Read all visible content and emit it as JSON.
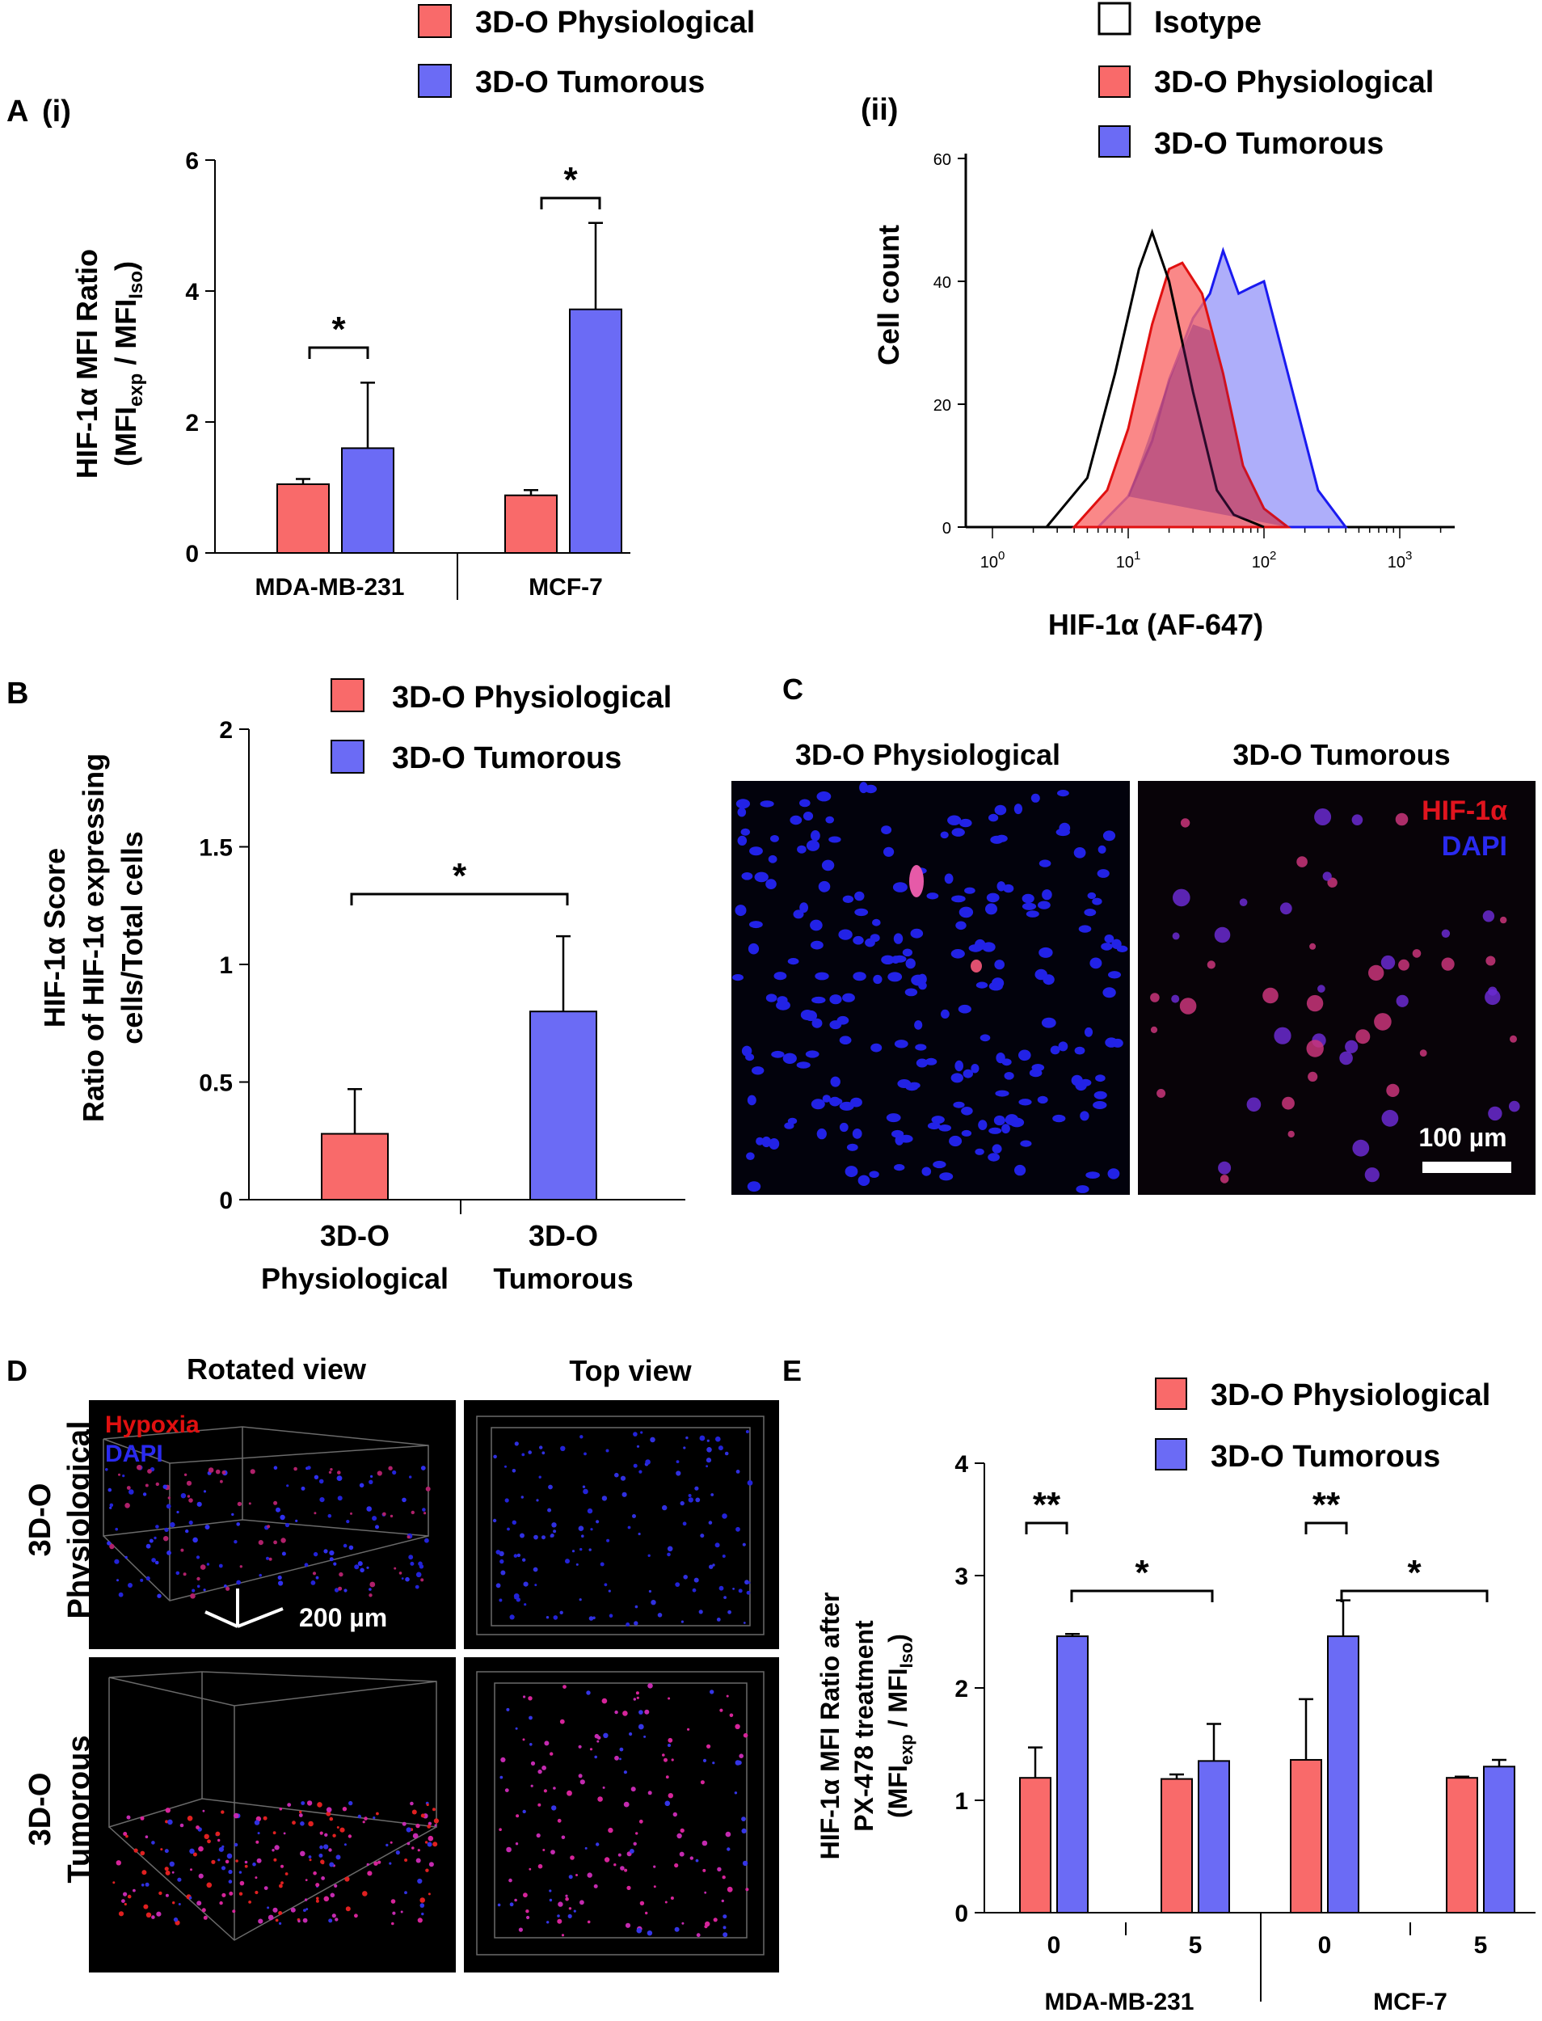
{
  "colors": {
    "physiological": "#f96a6a",
    "tumorous": "#6b6bf5",
    "isotype": "#ffffff",
    "axis": "#000000",
    "micro_bg": "#03030d",
    "nuclei": "#2222e6",
    "hif": "#e02a6a",
    "hypoxia_text": "#e01010"
  },
  "panels": {
    "A": "A",
    "Ai": "(i)",
    "Aii": "(ii)",
    "B": "B",
    "C": "C",
    "D": "D",
    "E": "E"
  },
  "legend": {
    "isotype": "Isotype",
    "physiological": "3D-O Physiological",
    "tumorous": "3D-O Tumorous"
  },
  "chart_data": [
    {
      "id": "A-i",
      "type": "bar",
      "title": "",
      "ylabel_line1": "HIF-1α MFI Ratio",
      "ylabel_line2": "(MFIexp / MFIIso)",
      "ylim": [
        0,
        6
      ],
      "yticks": [
        "0",
        "2",
        "4",
        "6"
      ],
      "categories": [
        "MDA-MB-231",
        "MCF-7"
      ],
      "series": [
        {
          "name": "3D-O Physiological",
          "values": [
            1.05,
            0.88
          ],
          "errors": [
            0.08,
            0.08
          ]
        },
        {
          "name": "3D-O Tumorous",
          "values": [
            1.6,
            3.72
          ],
          "errors": [
            1.0,
            1.32
          ]
        }
      ],
      "significance": [
        "*",
        "*"
      ]
    },
    {
      "id": "A-ii",
      "type": "area",
      "xlabel": "HIF-1α (AF-647)",
      "ylabel": "Cell count",
      "xscale": "log",
      "xticks": [
        "10^0",
        "10^1",
        "10^2",
        "10^3"
      ],
      "yticks": [
        "0",
        "20",
        "40",
        "60"
      ],
      "ylim": [
        0,
        60
      ],
      "series": [
        {
          "name": "Isotype",
          "x": [
            2.5,
            5,
            8,
            12,
            15,
            20,
            30,
            45,
            60,
            100
          ],
          "y": [
            0,
            8,
            25,
            42,
            48,
            40,
            22,
            6,
            2,
            0
          ]
        },
        {
          "name": "3D-O Physiological",
          "x": [
            4,
            7,
            10,
            15,
            20,
            25,
            35,
            50,
            70,
            100,
            150
          ],
          "y": [
            0,
            6,
            16,
            33,
            42,
            43,
            38,
            25,
            10,
            3,
            0
          ]
        },
        {
          "name": "3D-O Tumorous",
          "x": [
            6,
            10,
            15,
            20,
            30,
            40,
            50,
            65,
            80,
            100,
            150,
            250,
            400
          ],
          "y": [
            0,
            5,
            14,
            24,
            34,
            38,
            45,
            38,
            39,
            40,
            25,
            6,
            0
          ]
        }
      ]
    },
    {
      "id": "B",
      "type": "bar",
      "ylabel_line1": "HIF-1α Score",
      "ylabel_line2": "Ratio of HIF-1α expressing",
      "ylabel_line3": "cells/Total cells",
      "ylim": [
        0,
        2
      ],
      "yticks": [
        "0",
        "0.5",
        "1",
        "1.5",
        "2"
      ],
      "categories_line1": [
        "3D-O",
        "3D-O"
      ],
      "categories_line2": [
        "Physiological",
        "Tumorous"
      ],
      "values": [
        0.28,
        0.8
      ],
      "errors": [
        0.19,
        0.32
      ],
      "significance": "*"
    },
    {
      "id": "E",
      "type": "bar",
      "ylabel_line1": "HIF-1α MFI Ratio after",
      "ylabel_line2": "PX-478 treatment",
      "ylabel_line3": "(MFIexp / MFIIso)",
      "ylim": [
        0,
        4
      ],
      "yticks": [
        "0",
        "1",
        "2",
        "3",
        "4"
      ],
      "groups": [
        "MDA-MB-231",
        "MCF-7"
      ],
      "categories": [
        "0",
        "5",
        "0",
        "5"
      ],
      "series": [
        {
          "name": "3D-O Physiological",
          "values": [
            1.2,
            1.19,
            1.36,
            1.2
          ],
          "errors": [
            0.27,
            0.04,
            0.54,
            0.01
          ]
        },
        {
          "name": "3D-O Tumorous",
          "values": [
            2.46,
            1.35,
            2.46,
            1.3
          ],
          "errors": [
            0.02,
            0.33,
            0.32,
            0.06
          ]
        }
      ],
      "significance": [
        "**",
        "*",
        "**",
        "*"
      ]
    }
  ],
  "micrographs": {
    "C": {
      "title_left": "3D-O Physiological",
      "title_right": "3D-O Tumorous",
      "label_hif": "HIF-1α",
      "label_dapi": "DAPI",
      "scalebar": "100 µm"
    },
    "D": {
      "col1": "Rotated view",
      "col2": "Top view",
      "row1_line1": "3D-O",
      "row1_line2": "Physiological",
      "row2_line1": "3D-O",
      "row2_line2": "Tumorous",
      "label_hypoxia": "Hypoxia",
      "label_dapi": "DAPI",
      "scalebar": "200 µm"
    }
  }
}
